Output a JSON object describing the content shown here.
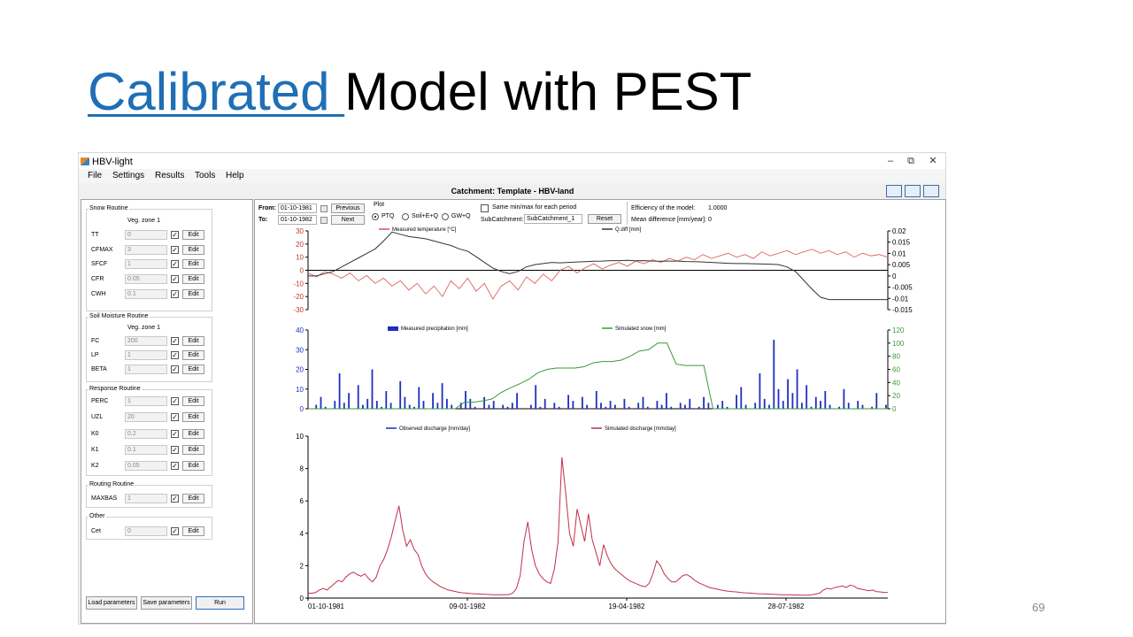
{
  "slide": {
    "title_link": "Calibrated ",
    "title_rest": "Model with PEST",
    "page_number": "69"
  },
  "window": {
    "title": "HBV-light",
    "minimize": "–",
    "restore": "⧉",
    "close": "✕"
  },
  "menu": [
    "File",
    "Settings",
    "Results",
    "Tools",
    "Help"
  ],
  "catchment_title": "Catchment: Template - HBV-land",
  "groups": [
    {
      "title": "Snow Routine",
      "veg": "Veg. zone 1",
      "params": [
        {
          "name": "TT",
          "value": "0"
        },
        {
          "name": "CFMAX",
          "value": "3"
        },
        {
          "name": "SFCF",
          "value": "1"
        },
        {
          "name": "CFR",
          "value": "0.05"
        },
        {
          "name": "CWH",
          "value": "0.1"
        }
      ]
    },
    {
      "title": "Soil Moisture Routine",
      "veg": "Veg. zone 1",
      "params": [
        {
          "name": "FC",
          "value": "200"
        },
        {
          "name": "LP",
          "value": "1"
        },
        {
          "name": "BETA",
          "value": "1"
        }
      ]
    },
    {
      "title": "Response Routine",
      "veg": "",
      "params": [
        {
          "name": "PERC",
          "value": "1"
        },
        {
          "name": "UZL",
          "value": "20"
        },
        {
          "name": "K0",
          "value": "0.2"
        },
        {
          "name": "K1",
          "value": "0.1"
        },
        {
          "name": "K2",
          "value": "0.05"
        }
      ]
    },
    {
      "title": "Routing Routine",
      "veg": "",
      "params": [
        {
          "name": "MAXBAS",
          "value": "1"
        }
      ]
    },
    {
      "title": "Other",
      "veg": "",
      "params": [
        {
          "name": "Cet",
          "value": "0"
        }
      ]
    }
  ],
  "edit_label": "Edit",
  "check_mark": "✓",
  "buttons": {
    "load": "Load parameters",
    "save": "Save parameters",
    "run": "Run"
  },
  "controls": {
    "from_label": "From:",
    "from_value": "01-10-1981",
    "to_label": "To:",
    "to_value": "01-10-1982",
    "previous": "Previous",
    "next": "Next",
    "plot_label": "Plot",
    "plot_options": [
      "PTQ",
      "Soil+E+Q",
      "GW+Q"
    ],
    "same_minmax": "Same min/max for each period",
    "subcatchment_label": "SubCatchment:",
    "subcatchment_value": "SubCatchment_1",
    "reset": "Reset",
    "efficiency_label": "Efficiency of the model:",
    "efficiency_value": "1.0000",
    "meandiff_label": "Mean difference [mm/year]:",
    "meandiff_value": "0"
  },
  "chart_data": [
    {
      "type": "line",
      "series": [
        {
          "name": "Measured temperature [°C]",
          "color": "#d9534f",
          "values": [
            -2,
            -5,
            -1,
            -3,
            -6,
            -2,
            -8,
            -4,
            -10,
            -6,
            -12,
            -8,
            -15,
            -10,
            -18,
            -12,
            -20,
            -8,
            -14,
            -6,
            -16,
            -10,
            -22,
            -12,
            -8,
            -15,
            -5,
            -10,
            -3,
            -8,
            0,
            3,
            -2,
            2,
            5,
            1,
            4,
            6,
            3,
            7,
            5,
            8,
            6,
            9,
            7,
            10,
            8,
            12,
            9,
            11,
            13,
            10,
            12,
            9,
            14,
            11,
            13,
            15,
            12,
            14,
            16,
            13,
            15,
            12,
            14,
            10,
            13,
            11,
            12,
            10
          ]
        },
        {
          "name": "Q.diff [mm]",
          "color": "#333333",
          "values": [
            0.0,
            0.0,
            0.001,
            0.002,
            0.004,
            0.006,
            0.008,
            0.01,
            0.012,
            0.0155,
            0.0195,
            0.0185,
            0.0175,
            0.017,
            0.0165,
            0.0155,
            0.0145,
            0.0135,
            0.012,
            0.011,
            0.0085,
            0.006,
            0.0035,
            0.002,
            0.001,
            0.002,
            0.004,
            0.005,
            0.0055,
            0.006,
            0.0058,
            0.006,
            0.0062,
            0.0063,
            0.0065,
            0.0066,
            0.0068,
            0.0068,
            0.0069,
            0.0067,
            0.0068,
            0.0066,
            0.0065,
            0.0066,
            0.0066,
            0.0064,
            0.0063,
            0.0062,
            0.006,
            0.0058,
            0.0056,
            0.0055,
            0.0055,
            0.0054,
            0.0053,
            0.0052,
            0.005,
            0.004,
            0.002,
            -0.002,
            -0.006,
            -0.0095,
            -0.0105,
            -0.0105,
            -0.0105,
            -0.0105,
            -0.0105,
            -0.0105,
            -0.0105,
            -0.0105
          ]
        }
      ],
      "y_left": {
        "ticks": [
          "30",
          "20",
          "10",
          "0",
          "-10",
          "-20",
          "-30"
        ],
        "range": [
          -30,
          30
        ]
      },
      "y_right": {
        "ticks": [
          "0.02",
          "0.015",
          "0.01",
          "0.005",
          "0",
          "-0.005",
          "-0.01",
          "-0.015"
        ],
        "range": [
          -0.015,
          0.02
        ]
      }
    },
    {
      "type": "bar",
      "series": [
        {
          "name": "Measured precipitation [mm]",
          "color": "#1f2fbf",
          "values": [
            0,
            2,
            6,
            1,
            0,
            4,
            18,
            3,
            8,
            0,
            12,
            2,
            5,
            20,
            4,
            1,
            9,
            3,
            0,
            14,
            6,
            2,
            1,
            11,
            4,
            0,
            8,
            3,
            13,
            5,
            2,
            0,
            3,
            9,
            5,
            1,
            0,
            6,
            2,
            4,
            0,
            2,
            1,
            3,
            8,
            0,
            0,
            2,
            12,
            1,
            5,
            0,
            3,
            1,
            0,
            7,
            4,
            0,
            6,
            2,
            0,
            9,
            3,
            1,
            4,
            2,
            0,
            5,
            1,
            0,
            3,
            6,
            1,
            0,
            4,
            2,
            8,
            1,
            0,
            3,
            2,
            5,
            0,
            1,
            6,
            3,
            0,
            2,
            4,
            1,
            0,
            7,
            11,
            2,
            0,
            3,
            18,
            5,
            2,
            35,
            10,
            4,
            15,
            8,
            20,
            3,
            12,
            1,
            6,
            4,
            9,
            2,
            0,
            1,
            10,
            3,
            0,
            4,
            2,
            0,
            1,
            8,
            0,
            2
          ]
        },
        {
          "name": "Simulated snow [mm]",
          "color": "#3a9a3a",
          "values": [
            0,
            0,
            0,
            0,
            0,
            0,
            0,
            0,
            0,
            0,
            0,
            0,
            0,
            0,
            0,
            0,
            0,
            10,
            10,
            12,
            15,
            25,
            32,
            38,
            45,
            55,
            60,
            62,
            62,
            62,
            64,
            70,
            72,
            72,
            74,
            80,
            88,
            90,
            100,
            100,
            68,
            66,
            66,
            66,
            0,
            0,
            0,
            0,
            0,
            0,
            0,
            0,
            0,
            0,
            0,
            0,
            0,
            0,
            0,
            0,
            0,
            0,
            0,
            0
          ]
        }
      ],
      "y_left": {
        "ticks": [
          "40",
          "30",
          "20",
          "10",
          "0"
        ],
        "range": [
          0,
          40
        ]
      },
      "y_right": {
        "ticks": [
          "120",
          "100",
          "80",
          "60",
          "40",
          "20",
          "0"
        ],
        "range": [
          0,
          120
        ]
      }
    },
    {
      "type": "line",
      "series": [
        {
          "name": "Observed discharge [mm/day]",
          "color": "#1f2fbf",
          "values": []
        },
        {
          "name": "Simulated discharge [mm/day]",
          "color": "#c0304a",
          "values": [
            0.3,
            0.3,
            0.35,
            0.5,
            0.6,
            0.5,
            0.7,
            0.9,
            1.1,
            1.0,
            1.3,
            1.5,
            1.6,
            1.45,
            1.35,
            1.5,
            1.2,
            1.0,
            1.3,
            2.0,
            2.4,
            3.0,
            3.8,
            4.8,
            5.7,
            4.2,
            3.2,
            3.6,
            3.0,
            2.7,
            2.0,
            1.5,
            1.2,
            1.0,
            0.85,
            0.7,
            0.6,
            0.5,
            0.45,
            0.4,
            0.35,
            0.32,
            0.3,
            0.28,
            0.26,
            0.25,
            0.24,
            0.23,
            0.22,
            0.21,
            0.2,
            0.2,
            0.2,
            0.22,
            0.3,
            0.6,
            1.4,
            3.5,
            4.7,
            3.0,
            2.0,
            1.5,
            1.2,
            1.0,
            0.9,
            1.8,
            3.5,
            8.7,
            6.5,
            4.0,
            3.2,
            5.5,
            4.5,
            3.5,
            5.2,
            3.6,
            2.8,
            2.0,
            3.3,
            2.6,
            2.1,
            1.8,
            1.6,
            1.4,
            1.2,
            1.05,
            0.95,
            0.85,
            0.75,
            0.7,
            0.9,
            1.5,
            2.3,
            2.0,
            1.5,
            1.2,
            1.0,
            1.0,
            1.2,
            1.4,
            1.45,
            1.3,
            1.1,
            0.95,
            0.85,
            0.75,
            0.65,
            0.6,
            0.55,
            0.5,
            0.45,
            0.42,
            0.4,
            0.38,
            0.35,
            0.33,
            0.32,
            0.3,
            0.28,
            0.27,
            0.26,
            0.25,
            0.24,
            0.23,
            0.22,
            0.21,
            0.2,
            0.2,
            0.19,
            0.19,
            0.18,
            0.18,
            0.18,
            0.2,
            0.25,
            0.3,
            0.5,
            0.6,
            0.55,
            0.65,
            0.7,
            0.75,
            0.65,
            0.8,
            0.75,
            0.6,
            0.55,
            0.5,
            0.45,
            0.5,
            0.4,
            0.38,
            0.35,
            0.35
          ]
        }
      ],
      "y_left": {
        "ticks": [
          "10",
          "8",
          "6",
          "4",
          "2",
          "0"
        ],
        "range": [
          0,
          10
        ]
      },
      "x_ticks": [
        "01-10-1981",
        "09-01-1982",
        "19-04-1982",
        "28-07-1982"
      ]
    }
  ]
}
